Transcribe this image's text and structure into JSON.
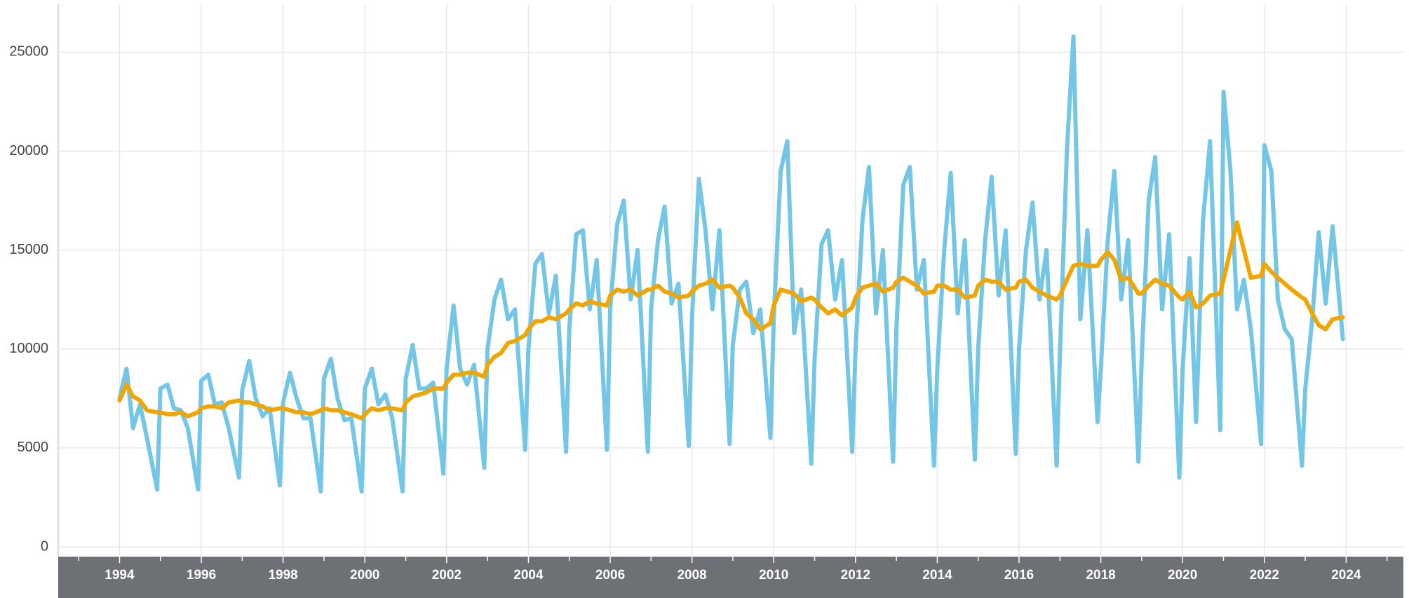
{
  "chart_data": {
    "type": "line",
    "x": [
      1994,
      1994.17,
      1994.33,
      1994.5,
      1994.67,
      1994.92,
      1995,
      1995.17,
      1995.33,
      1995.5,
      1995.67,
      1995.92,
      1996,
      1996.17,
      1996.33,
      1996.5,
      1996.67,
      1996.92,
      1997,
      1997.17,
      1997.33,
      1997.5,
      1997.67,
      1997.92,
      1998,
      1998.17,
      1998.33,
      1998.5,
      1998.67,
      1998.92,
      1999,
      1999.17,
      1999.33,
      1999.5,
      1999.67,
      1999.92,
      2000,
      2000.17,
      2000.33,
      2000.5,
      2000.67,
      2000.92,
      2001,
      2001.17,
      2001.33,
      2001.5,
      2001.67,
      2001.92,
      2002,
      2002.17,
      2002.33,
      2002.5,
      2002.67,
      2002.92,
      2003,
      2003.17,
      2003.33,
      2003.5,
      2003.67,
      2003.92,
      2004,
      2004.17,
      2004.33,
      2004.5,
      2004.67,
      2004.92,
      2005,
      2005.17,
      2005.33,
      2005.5,
      2005.67,
      2005.92,
      2006,
      2006.17,
      2006.33,
      2006.5,
      2006.67,
      2006.92,
      2007,
      2007.17,
      2007.33,
      2007.5,
      2007.67,
      2007.92,
      2008,
      2008.17,
      2008.33,
      2008.5,
      2008.67,
      2008.92,
      2009,
      2009.17,
      2009.33,
      2009.5,
      2009.67,
      2009.92,
      2010,
      2010.17,
      2010.33,
      2010.5,
      2010.67,
      2010.92,
      2011,
      2011.17,
      2011.33,
      2011.5,
      2011.67,
      2011.92,
      2012,
      2012.17,
      2012.33,
      2012.5,
      2012.67,
      2012.92,
      2013,
      2013.17,
      2013.33,
      2013.5,
      2013.67,
      2013.92,
      2014,
      2014.17,
      2014.33,
      2014.5,
      2014.67,
      2014.92,
      2015,
      2015.17,
      2015.33,
      2015.5,
      2015.67,
      2015.92,
      2016,
      2016.17,
      2016.33,
      2016.5,
      2016.67,
      2016.92,
      2017,
      2017.17,
      2017.33,
      2017.5,
      2017.67,
      2017.92,
      2018,
      2018.17,
      2018.33,
      2018.5,
      2018.67,
      2018.92,
      2019,
      2019.17,
      2019.33,
      2019.5,
      2019.67,
      2019.92,
      2020,
      2020.17,
      2020.33,
      2020.5,
      2020.67,
      2020.92,
      2021,
      2021.17,
      2021.33,
      2021.5,
      2021.67,
      2021.92,
      2022,
      2022.17,
      2022.33,
      2022.5,
      2022.67,
      2022.92,
      2023,
      2023.17,
      2023.33,
      2023.5,
      2023.67,
      2023.92
    ],
    "series": [
      {
        "color": "#74c6e6",
        "values": [
          7500,
          9000,
          6000,
          7200,
          5500,
          2900,
          8000,
          8200,
          7000,
          6900,
          6000,
          2900,
          8400,
          8700,
          7200,
          7300,
          6000,
          3500,
          7900,
          9400,
          7500,
          6600,
          7000,
          3100,
          7300,
          8800,
          7500,
          6500,
          6500,
          2800,
          8500,
          9500,
          7500,
          6400,
          6500,
          2800,
          8000,
          9000,
          7200,
          7700,
          6500,
          2800,
          8500,
          10200,
          8000,
          8000,
          8300,
          3700,
          9000,
          12200,
          9000,
          8200,
          9200,
          4000,
          10000,
          12500,
          13500,
          11500,
          12000,
          4900,
          10000,
          14300,
          14800,
          11800,
          13700,
          4800,
          11000,
          15800,
          16000,
          12000,
          14500,
          4900,
          12000,
          16300,
          17500,
          12500,
          15000,
          4800,
          12000,
          15500,
          17200,
          12300,
          13300,
          5100,
          11500,
          18600,
          16000,
          12000,
          16000,
          5200,
          10200,
          13000,
          13400,
          10800,
          12000,
          5500,
          11500,
          19000,
          20500,
          10800,
          13000,
          4200,
          9500,
          15300,
          16000,
          12500,
          14500,
          4800,
          10000,
          16500,
          19200,
          11800,
          15000,
          4300,
          11000,
          18300,
          19200,
          13000,
          14500,
          4100,
          9000,
          15000,
          18900,
          11800,
          15500,
          4400,
          10000,
          15500,
          18700,
          12700,
          16000,
          4700,
          10000,
          15000,
          17400,
          12500,
          15000,
          4100,
          9800,
          20000,
          25800,
          11500,
          16000,
          6300,
          9000,
          15500,
          19000,
          12500,
          15500,
          4300,
          9500,
          17500,
          19700,
          12000,
          15800,
          3500,
          9000,
          14600,
          6300,
          16500,
          20500,
          5900,
          23000,
          19000,
          12000,
          13500,
          11000,
          5200,
          20300,
          19000,
          12500,
          11000,
          10500,
          4100,
          8000,
          11500,
          15900,
          12300,
          16200,
          10500
        ]
      },
      {
        "color": "#f0a500",
        "values": [
          7400,
          8200,
          7600,
          7400,
          6900,
          6800,
          6800,
          6700,
          6700,
          6800,
          6600,
          6800,
          7000,
          7100,
          7100,
          7000,
          7300,
          7400,
          7300,
          7300,
          7200,
          7100,
          6900,
          7000,
          7000,
          6900,
          6800,
          6800,
          6700,
          6900,
          7000,
          6900,
          6900,
          6800,
          6700,
          6500,
          6700,
          7000,
          6900,
          7000,
          7000,
          6900,
          7300,
          7600,
          7700,
          7800,
          8000,
          8000,
          8300,
          8700,
          8700,
          8800,
          8800,
          8600,
          9200,
          9600,
          9800,
          10300,
          10400,
          10700,
          11000,
          11400,
          11400,
          11600,
          11500,
          11800,
          12000,
          12300,
          12200,
          12400,
          12300,
          12200,
          12700,
          13000,
          12900,
          13000,
          12700,
          13000,
          13000,
          13200,
          12900,
          12800,
          12600,
          12700,
          12900,
          13200,
          13300,
          13500,
          13100,
          13200,
          13100,
          12600,
          11800,
          11500,
          11000,
          11300,
          12200,
          13000,
          12900,
          12800,
          12400,
          12600,
          12500,
          12100,
          11800,
          12000,
          11700,
          12100,
          12600,
          13100,
          13200,
          13300,
          12900,
          13100,
          13400,
          13600,
          13400,
          13200,
          12800,
          12900,
          13200,
          13200,
          13000,
          13000,
          12600,
          12700,
          13200,
          13500,
          13400,
          13400,
          13000,
          13100,
          13400,
          13500,
          13100,
          12900,
          12700,
          12500,
          12700,
          13500,
          14200,
          14300,
          14200,
          14200,
          14500,
          14900,
          14500,
          13500,
          13600,
          12800,
          12800,
          13200,
          13500,
          13300,
          13200,
          12600,
          12500,
          12900,
          12100,
          12300,
          12700,
          12800,
          13500,
          15000,
          16400,
          15000,
          13600,
          13700,
          14300,
          13900,
          13600,
          13300,
          13000,
          12600,
          12500,
          11800,
          11200,
          11000,
          11500,
          11600
        ]
      }
    ],
    "xlim": [
      1992.5,
      2025.4
    ],
    "xticks": [
      1994,
      1996,
      1998,
      2000,
      2002,
      2004,
      2006,
      2008,
      2010,
      2012,
      2014,
      2016,
      2018,
      2020,
      2022,
      2024
    ],
    "xminorticks": [
      1993,
      1995,
      1997,
      1999,
      2001,
      2003,
      2005,
      2007,
      2009,
      2011,
      2013,
      2015,
      2017,
      2019,
      2021,
      2023,
      2025
    ],
    "ylim": [
      0,
      27000
    ],
    "yticks": [
      0,
      5000,
      10000,
      15000,
      20000,
      25000
    ],
    "grid": true
  }
}
